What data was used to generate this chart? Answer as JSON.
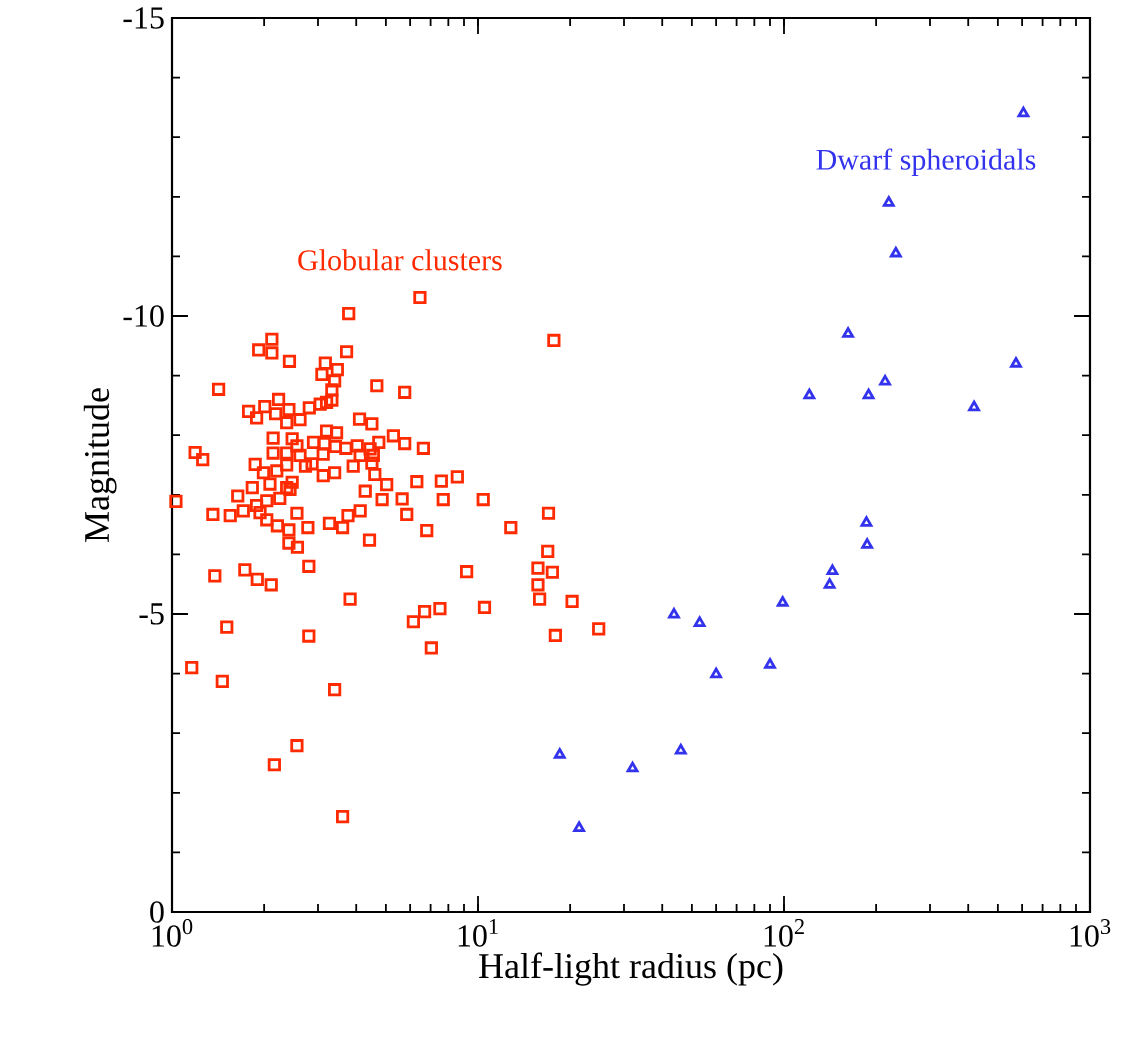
{
  "chart_data": {
    "type": "scatter",
    "xlabel": "Half-light radius (pc)",
    "ylabel": "Magnitude",
    "log": "x",
    "grid": false,
    "legend": false,
    "xlim": [
      1,
      1000
    ],
    "xticks": [
      {
        "value": 1,
        "label": "10$^{0}$"
      },
      {
        "value": 10,
        "label": "10$^{1}$"
      },
      {
        "value": 100,
        "label": "10$^{2}$"
      },
      {
        "value": 1000,
        "label": "10$^{3}$"
      }
    ],
    "ylim": [
      0,
      -15
    ],
    "yticks": [
      0,
      -5,
      -10,
      -15
    ],
    "series": [
      {
        "name": "Globular clusters",
        "color": "#ff2a00",
        "marker": "square",
        "x": [
          6.46,
          3.78,
          2.12,
          1.92,
          2.12,
          2.42,
          3.72,
          1.42,
          3.17,
          3.09,
          3.47,
          3.4,
          3.33,
          3.33,
          3.05,
          3.2,
          2.81,
          4.67,
          5.76,
          1.78,
          2.01,
          1.89,
          2.23,
          2.41,
          2.18,
          2.62,
          2.37,
          4.1,
          4.5,
          3.2,
          3.45,
          5.29,
          5.76,
          6.63,
          2.14,
          2.47,
          2.56,
          2.9,
          3.15,
          3.42,
          3.7,
          4.03,
          4.44,
          4.74,
          1.19,
          1.26,
          2.14,
          2.37,
          2.62,
          3.12,
          4.12,
          4.55,
          1.87,
          2.37,
          2.73,
          2.87,
          3.91,
          4.5,
          1.99,
          2.2,
          3.12,
          3.4,
          4.6,
          5.03,
          6.31,
          7.59,
          8.56,
          1.83,
          2.09,
          2.37,
          2.47,
          4.28,
          1.64,
          1.89,
          2.04,
          2.25,
          2.43,
          4.86,
          5.65,
          7.7,
          10.4,
          1.03,
          1.36,
          1.55,
          1.71,
          1.94,
          2.56,
          2.04,
          2.21,
          2.41,
          2.78,
          3.27,
          3.61,
          3.76,
          4.12,
          5.85,
          6.8,
          4.42,
          2.41,
          2.57,
          9.18,
          1.38,
          1.73,
          1.9,
          2.11,
          2.8,
          3.82,
          6.15,
          6.69,
          7.51,
          10.5,
          1.51,
          2.8,
          7.04,
          1.16,
          1.46,
          3.4,
          2.56,
          2.16,
          3.61,
          17.7,
          17.0,
          12.8,
          16.9,
          15.7,
          17.5,
          15.7,
          15.9,
          20.3,
          17.9,
          24.8
        ],
        "values": [
          -10.31,
          -10.04,
          -9.61,
          -9.43,
          -9.38,
          -9.24,
          -9.4,
          -8.77,
          -9.21,
          -9.02,
          -9.1,
          -8.91,
          -8.76,
          -8.59,
          -8.52,
          -8.55,
          -8.46,
          -8.83,
          -8.72,
          -8.4,
          -8.48,
          -8.29,
          -8.6,
          -8.43,
          -8.36,
          -8.26,
          -8.21,
          -8.27,
          -8.19,
          -8.07,
          -8.04,
          -7.99,
          -7.86,
          -7.78,
          -7.95,
          -7.94,
          -7.82,
          -7.88,
          -7.86,
          -7.81,
          -7.78,
          -7.82,
          -7.77,
          -7.88,
          -7.71,
          -7.59,
          -7.7,
          -7.7,
          -7.66,
          -7.68,
          -7.66,
          -7.66,
          -7.51,
          -7.5,
          -7.48,
          -7.52,
          -7.48,
          -7.53,
          -7.37,
          -7.4,
          -7.32,
          -7.37,
          -7.34,
          -7.17,
          -7.22,
          -7.23,
          -7.3,
          -7.12,
          -7.18,
          -7.12,
          -7.21,
          -7.06,
          -6.98,
          -6.82,
          -6.9,
          -6.94,
          -7.09,
          -6.92,
          -6.93,
          -6.92,
          -6.92,
          -6.89,
          -6.67,
          -6.65,
          -6.73,
          -6.7,
          -6.69,
          -6.58,
          -6.48,
          -6.41,
          -6.45,
          -6.52,
          -6.45,
          -6.65,
          -6.73,
          -6.67,
          -6.4,
          -6.24,
          -6.19,
          -6.12,
          -5.71,
          -5.64,
          -5.74,
          -5.58,
          -5.49,
          -5.8,
          -5.25,
          -4.87,
          -5.04,
          -5.09,
          -5.11,
          -4.78,
          -4.63,
          -4.43,
          -4.1,
          -3.87,
          -3.73,
          -2.79,
          -2.47,
          -1.6,
          -9.59,
          -6.69,
          -6.45,
          -6.05,
          -5.77,
          -5.7,
          -5.49,
          -5.25,
          -5.21,
          -4.64,
          -4.75
        ]
      },
      {
        "name": "Dwarf spheroidals",
        "color": "#3333ee",
        "marker": "triangle",
        "x": [
          606,
          220,
          232,
          162,
          573,
          121,
          189,
          214,
          418,
          186,
          187,
          144,
          141,
          99,
          43.7,
          53,
          60,
          90,
          18.5,
          46,
          32,
          21.4
        ],
        "values": [
          -13.4,
          -11.9,
          -11.05,
          -9.7,
          -9.2,
          -8.67,
          -8.67,
          -8.9,
          -8.47,
          -6.53,
          -6.16,
          -5.72,
          -5.49,
          -5.19,
          -4.99,
          -4.85,
          -3.99,
          -4.15,
          -2.64,
          -2.71,
          -2.41,
          -1.41
        ]
      }
    ]
  }
}
